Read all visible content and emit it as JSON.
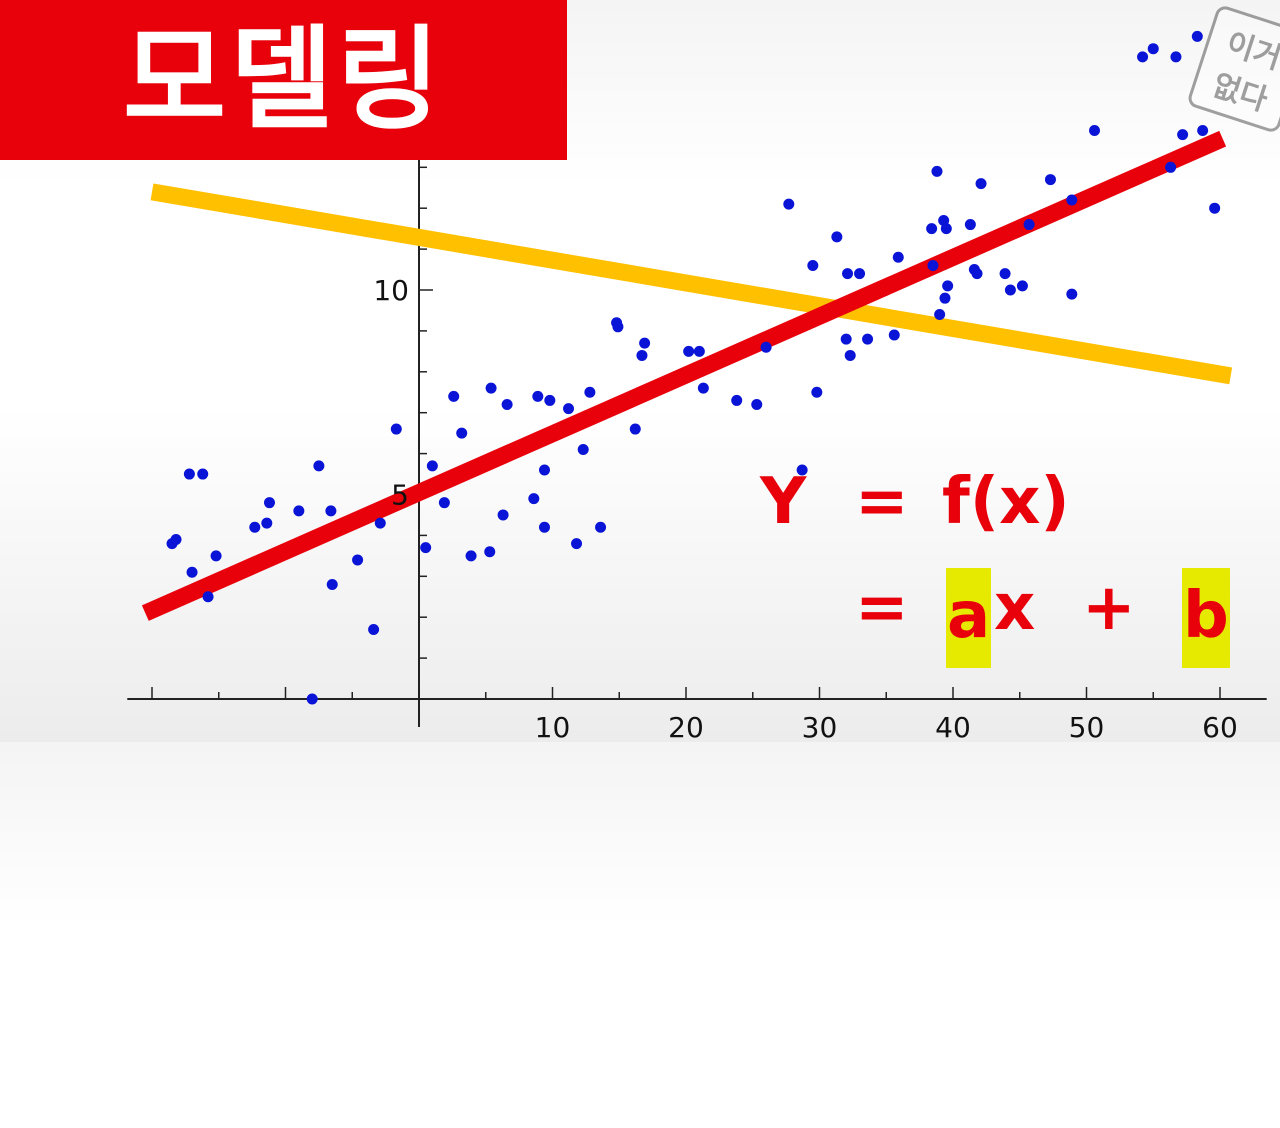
{
  "banner": {
    "title": "모델링"
  },
  "formula": {
    "line1": {
      "y": "Y",
      "eq": "=",
      "fx": "f(x)"
    },
    "line2": {
      "eq": "=",
      "a": "a",
      "x": "x",
      "plus": "+",
      "b": "b"
    }
  },
  "watermark": {
    "line1": "이거",
    "line2": "없다"
  },
  "colors": {
    "points": "#0a14d6",
    "fit_line": "#e8000b",
    "bad_line": "#ffc000",
    "banner": "#e8000b",
    "highlight": "#e6ea00"
  },
  "chart_data": {
    "type": "scatter",
    "title": "",
    "xlabel": "",
    "ylabel": "",
    "xlim": [
      -22,
      62
    ],
    "ylim": [
      0,
      16
    ],
    "x_ticks": [
      10,
      20,
      30,
      40,
      50,
      60
    ],
    "y_ticks": [
      5,
      10
    ],
    "grid": false,
    "series": [
      {
        "points": [
          [
            -18.5,
            3.8
          ],
          [
            -18.2,
            3.9
          ],
          [
            -17.2,
            5.5
          ],
          [
            -17.0,
            3.1
          ],
          [
            -16.2,
            5.5
          ],
          [
            -15.8,
            2.5
          ],
          [
            -15.2,
            3.5
          ],
          [
            -12.3,
            4.2
          ],
          [
            -11.4,
            4.3
          ],
          [
            -11.2,
            4.8
          ],
          [
            -9.0,
            4.6
          ],
          [
            -7.5,
            5.7
          ],
          [
            -6.6,
            4.6
          ],
          [
            -6.5,
            2.8
          ],
          [
            -4.6,
            3.4
          ],
          [
            -3.4,
            1.7
          ],
          [
            -2.9,
            4.3
          ],
          [
            -1.7,
            6.6
          ],
          [
            -8.0,
            0.0
          ],
          [
            0.5,
            3.7
          ],
          [
            1.0,
            5.7
          ],
          [
            1.9,
            4.8
          ],
          [
            2.6,
            7.4
          ],
          [
            3.2,
            6.5
          ],
          [
            3.9,
            3.5
          ],
          [
            5.3,
            3.6
          ],
          [
            5.4,
            7.6
          ],
          [
            6.3,
            4.5
          ],
          [
            6.6,
            7.2
          ],
          [
            8.6,
            4.9
          ],
          [
            8.9,
            7.4
          ],
          [
            9.4,
            5.6
          ],
          [
            9.4,
            4.2
          ],
          [
            9.8,
            7.3
          ],
          [
            11.2,
            7.1
          ],
          [
            11.8,
            3.8
          ],
          [
            12.3,
            6.1
          ],
          [
            12.8,
            7.5
          ],
          [
            13.6,
            4.2
          ],
          [
            14.8,
            9.2
          ],
          [
            14.9,
            9.1
          ],
          [
            16.2,
            6.6
          ],
          [
            16.7,
            8.4
          ],
          [
            16.9,
            8.7
          ],
          [
            20.2,
            8.5
          ],
          [
            21.0,
            8.5
          ],
          [
            21.3,
            7.6
          ],
          [
            23.8,
            7.3
          ],
          [
            25.3,
            7.2
          ],
          [
            26.0,
            8.6
          ],
          [
            27.7,
            12.1
          ],
          [
            28.7,
            5.6
          ],
          [
            29.5,
            10.6
          ],
          [
            29.8,
            7.5
          ],
          [
            31.3,
            11.3
          ],
          [
            32.0,
            8.8
          ],
          [
            32.1,
            10.4
          ],
          [
            32.3,
            8.4
          ],
          [
            33.0,
            10.4
          ],
          [
            33.6,
            8.8
          ],
          [
            35.6,
            8.9
          ],
          [
            35.9,
            10.8
          ],
          [
            38.4,
            11.5
          ],
          [
            38.5,
            10.6
          ],
          [
            38.8,
            12.9
          ],
          [
            39.0,
            9.4
          ],
          [
            39.3,
            11.7
          ],
          [
            39.4,
            9.8
          ],
          [
            39.5,
            11.5
          ],
          [
            39.6,
            10.1
          ],
          [
            41.3,
            11.6
          ],
          [
            41.6,
            10.5
          ],
          [
            41.8,
            10.4
          ],
          [
            42.1,
            12.6
          ],
          [
            43.9,
            10.4
          ],
          [
            44.3,
            10.0
          ],
          [
            45.2,
            10.1
          ],
          [
            45.7,
            11.6
          ],
          [
            47.3,
            12.7
          ],
          [
            48.9,
            9.9
          ],
          [
            48.9,
            12.2
          ],
          [
            50.6,
            13.9
          ],
          [
            54.2,
            15.7
          ],
          [
            55.0,
            15.9
          ],
          [
            56.3,
            13.0
          ],
          [
            56.7,
            15.7
          ],
          [
            57.2,
            13.8
          ],
          [
            58.3,
            16.2
          ],
          [
            58.7,
            13.9
          ],
          [
            59.6,
            12.0
          ]
        ]
      }
    ],
    "lines": [
      {
        "role": "fit",
        "from": [
          -20.5,
          2.1
        ],
        "to": [
          60.2,
          13.7
        ]
      },
      {
        "role": "bad-fit",
        "from": [
          -20.0,
          12.4
        ],
        "to": [
          60.8,
          7.9
        ]
      }
    ]
  }
}
